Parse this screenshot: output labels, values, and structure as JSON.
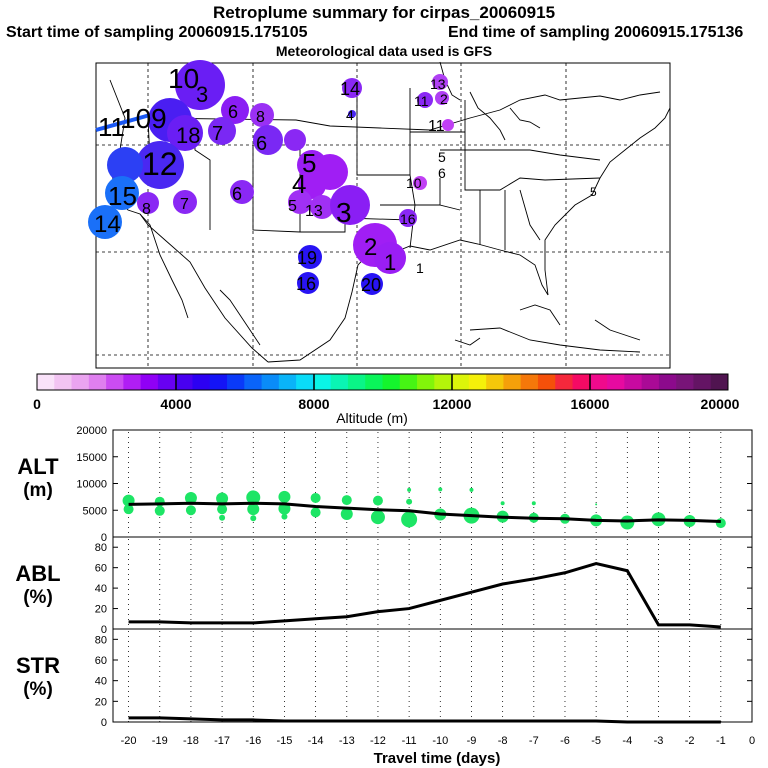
{
  "header": {
    "title": "Retroplume summary for cirpas_20060915",
    "start": "Start time of sampling 20060915.175105",
    "end": "End time of sampling 20060915.175136",
    "met": "Meteorological data used is GFS"
  },
  "colorbar": {
    "label": "Altitude (m)",
    "ticks": [
      "0",
      "4000",
      "8000",
      "12000",
      "16000",
      "20000"
    ],
    "colors": [
      "#f9e2f9",
      "#f2c4f2",
      "#eaa4f0",
      "#df7fef",
      "#cb4cf2",
      "#b01ef4",
      "#9000f5",
      "#6800f2",
      "#4800f0",
      "#2c00f2",
      "#1414f6",
      "#0a3af8",
      "#0a64f9",
      "#0a8cf8",
      "#0ab4f8",
      "#0adcf8",
      "#0af5e6",
      "#0af5b4",
      "#0af587",
      "#0af55a",
      "#14f52d",
      "#46f514",
      "#82f50a",
      "#b4f50a",
      "#dcf50a",
      "#f5f00a",
      "#f5c80a",
      "#f5a00a",
      "#f5780a",
      "#f5500a",
      "#f5283c",
      "#f50a64",
      "#f00a8c",
      "#e60aa0",
      "#c80aa0",
      "#aa0a96",
      "#8c0a8c",
      "#781478",
      "#641464",
      "#501450"
    ]
  },
  "map_labels": [
    {
      "text": "10",
      "color": "#4b1ef2"
    },
    {
      "text": "3",
      "color": "#6a1ef4"
    },
    {
      "text": "109",
      "color": "#4a1ef2"
    },
    {
      "text": "11",
      "color": "#1e58f6"
    },
    {
      "text": "18",
      "color": "#6a1ef4"
    },
    {
      "text": "12",
      "color": "#5a1ef4"
    },
    {
      "text": "15",
      "color": "#1a70f8"
    },
    {
      "text": "14",
      "color": "#1a70f8"
    },
    {
      "text": "14",
      "color": "#8a1ef4"
    },
    {
      "text": "5",
      "color": "#9a1ef4"
    },
    {
      "text": "4",
      "color": "#9a1ef4"
    },
    {
      "text": "3",
      "color": "#7a1ef4"
    },
    {
      "text": "2",
      "color": "#a01ef4"
    },
    {
      "text": "1",
      "color": "#a01ef4"
    },
    {
      "text": "19",
      "color": "#2814f4"
    },
    {
      "text": "16",
      "color": "#2814f4"
    },
    {
      "text": "20",
      "color": "#2814f4"
    },
    {
      "text": "11",
      "color": "#7a14f0"
    },
    {
      "text": "6",
      "color": "#a01ef4"
    }
  ],
  "chart_data": [
    {
      "type": "scatter",
      "ylabel": "ALT\n(m)",
      "ylabel_lines": [
        "ALT",
        "(m)"
      ],
      "ylim": [
        0,
        20000
      ],
      "yticks": [
        0,
        5000,
        10000,
        15000,
        20000
      ],
      "xlim": [
        -20,
        0
      ],
      "mean_line": {
        "x": [
          -20,
          -19,
          -18,
          -17,
          -16,
          -15,
          -14,
          -13,
          -12,
          -11,
          -10,
          -9,
          -8,
          -7,
          -6,
          -5,
          -4,
          -3,
          -2,
          -1
        ],
        "y": [
          6100,
          6200,
          6300,
          6200,
          6300,
          6200,
          5700,
          5400,
          5100,
          4900,
          4300,
          4000,
          3700,
          3500,
          3400,
          3100,
          3000,
          3200,
          3100,
          2900
        ]
      },
      "points": [
        {
          "x": -20,
          "y": 6800,
          "s": 6
        },
        {
          "x": -20,
          "y": 5200,
          "s": 5
        },
        {
          "x": -19,
          "y": 6600,
          "s": 5
        },
        {
          "x": -19,
          "y": 4900,
          "s": 5
        },
        {
          "x": -18,
          "y": 7300,
          "s": 6
        },
        {
          "x": -18,
          "y": 5000,
          "s": 5
        },
        {
          "x": -17,
          "y": 7200,
          "s": 6
        },
        {
          "x": -17,
          "y": 5200,
          "s": 5
        },
        {
          "x": -17,
          "y": 3600,
          "s": 3
        },
        {
          "x": -16,
          "y": 7400,
          "s": 7
        },
        {
          "x": -16,
          "y": 5200,
          "s": 6
        },
        {
          "x": -16,
          "y": 3500,
          "s": 3
        },
        {
          "x": -15,
          "y": 7500,
          "s": 6
        },
        {
          "x": -15,
          "y": 5300,
          "s": 6
        },
        {
          "x": -15,
          "y": 3800,
          "s": 3
        },
        {
          "x": -14,
          "y": 7300,
          "s": 5
        },
        {
          "x": -14,
          "y": 4600,
          "s": 5
        },
        {
          "x": -13,
          "y": 6900,
          "s": 5
        },
        {
          "x": -13,
          "y": 4300,
          "s": 6
        },
        {
          "x": -12,
          "y": 6800,
          "s": 5
        },
        {
          "x": -12,
          "y": 3700,
          "s": 7
        },
        {
          "x": -11,
          "y": 8800,
          "s": 2
        },
        {
          "x": -11,
          "y": 6600,
          "s": 3
        },
        {
          "x": -11,
          "y": 3300,
          "s": 8
        },
        {
          "x": -10,
          "y": 8900,
          "s": 2
        },
        {
          "x": -10,
          "y": 4200,
          "s": 6
        },
        {
          "x": -9,
          "y": 8800,
          "s": 2
        },
        {
          "x": -9,
          "y": 4000,
          "s": 8
        },
        {
          "x": -8,
          "y": 6300,
          "s": 2
        },
        {
          "x": -8,
          "y": 3800,
          "s": 6
        },
        {
          "x": -7,
          "y": 6300,
          "s": 2
        },
        {
          "x": -7,
          "y": 3600,
          "s": 5
        },
        {
          "x": -6,
          "y": 3400,
          "s": 5
        },
        {
          "x": -5,
          "y": 6100,
          "s": 1
        },
        {
          "x": -5,
          "y": 3100,
          "s": 6
        },
        {
          "x": -4,
          "y": 2700,
          "s": 7
        },
        {
          "x": -3,
          "y": 3300,
          "s": 7
        },
        {
          "x": -2,
          "y": 3000,
          "s": 6
        },
        {
          "x": -1,
          "y": 2600,
          "s": 5
        }
      ]
    },
    {
      "type": "line",
      "ylabel_lines": [
        "ABL",
        "(%)"
      ],
      "ylim": [
        0,
        90
      ],
      "yticks": [
        0,
        20,
        40,
        60,
        80
      ],
      "xlim": [
        -20,
        0
      ],
      "x": [
        -20,
        -19,
        -18,
        -17,
        -16,
        -15,
        -14,
        -13,
        -12,
        -11,
        -10,
        -9,
        -8,
        -7,
        -6,
        -5,
        -4,
        -3,
        -2,
        -1
      ],
      "y": [
        7,
        7,
        6,
        6,
        6,
        8,
        10,
        12,
        17,
        20,
        28,
        36,
        44,
        49,
        55,
        64,
        57,
        4,
        4,
        2
      ]
    },
    {
      "type": "line",
      "ylabel_lines": [
        "STR",
        "(%)"
      ],
      "ylim": [
        0,
        90
      ],
      "yticks": [
        0,
        20,
        40,
        60,
        80
      ],
      "xlim": [
        -20,
        0
      ],
      "x": [
        -20,
        -19,
        -18,
        -17,
        -16,
        -15,
        -14,
        -13,
        -12,
        -11,
        -10,
        -9,
        -8,
        -7,
        -6,
        -5,
        -4,
        -3,
        -2,
        -1
      ],
      "y": [
        4,
        4,
        3,
        2,
        2,
        1,
        1,
        1,
        1,
        1,
        1,
        1,
        1,
        1,
        1,
        1,
        0,
        0,
        0,
        0
      ],
      "xlabel": "Travel time (days)",
      "xticks": [
        -20,
        -19,
        -18,
        -17,
        -16,
        -15,
        -14,
        -13,
        -12,
        -11,
        -10,
        -9,
        -8,
        -7,
        -6,
        -5,
        -4,
        -3,
        -2,
        -1,
        0
      ]
    }
  ]
}
